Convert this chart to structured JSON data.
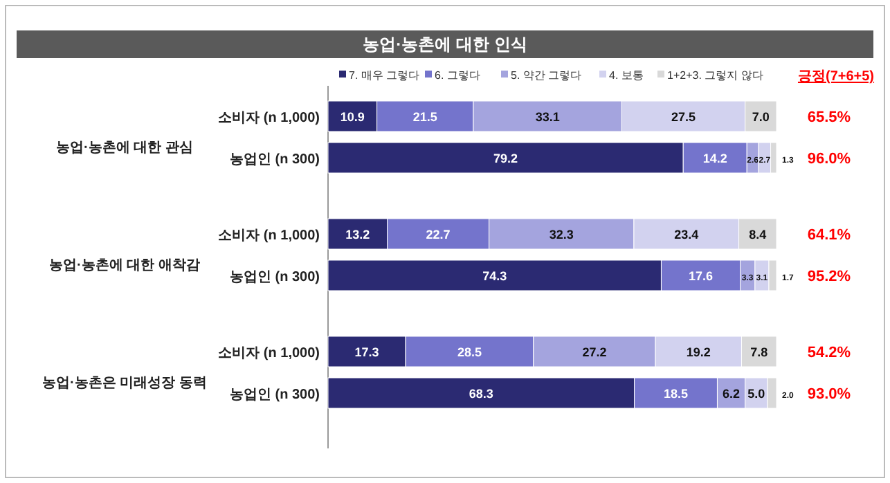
{
  "chart_data": {
    "type": "bar",
    "orientation": "horizontal",
    "stacked": true,
    "data_labels": true,
    "legend": "top",
    "title": "농업·농촌에 대한 인식",
    "categories": [
      "소비자 (n 1,000)",
      "농업인 (n 300)",
      "소비자 (n 1,000)",
      "농업인 (n 300)",
      "소비자 (n 1,000)",
      "농업인 (n 300)"
    ],
    "series": [
      {
        "name": "7. 매우 그렇다",
        "color": "#2b2a72",
        "values": [
          10.9,
          79.2,
          13.2,
          74.3,
          17.3,
          68.3
        ],
        "value_labels": [
          "10.9",
          "79.2",
          "13.2",
          "74.3",
          "17.3",
          "68.3"
        ]
      },
      {
        "name": "6. 그렇다",
        "color": "#7474cc",
        "values": [
          21.5,
          14.2,
          22.7,
          17.6,
          28.5,
          18.5
        ],
        "value_labels": [
          "21.5",
          "14.2",
          "22.7",
          "17.6",
          "28.5",
          "18.5"
        ]
      },
      {
        "name": "5. 약간 그렇다",
        "color": "#a4a4de",
        "values": [
          33.1,
          2.6,
          32.3,
          3.3,
          27.2,
          6.2
        ],
        "value_labels": [
          "33.1",
          "2.6",
          "32.3",
          "3.3",
          "27.2",
          "6.2"
        ]
      },
      {
        "name": "4. 보통",
        "color": "#d2d2ef",
        "values": [
          27.5,
          2.7,
          23.4,
          3.1,
          19.2,
          5.0
        ],
        "value_labels": [
          "27.5",
          "2.7",
          "23.4",
          "3.1",
          "19.2",
          "5.0"
        ]
      },
      {
        "name": "1+2+3. 그렇지 않다",
        "color": "#d9d9d9",
        "values": [
          7.0,
          1.3,
          8.4,
          1.7,
          7.8,
          2.0
        ],
        "value_labels": [
          "7.0",
          "1.3",
          "8.4",
          "1.7",
          "7.8",
          "2.0"
        ]
      }
    ],
    "annotations": [
      "긍정(7+6+5)",
      "65.5%",
      "96.0%",
      "64.1%",
      "95.2%",
      "54.2%",
      "93.0%",
      "농업·농촌에 대한 관심",
      "농업·농촌에 대한 애착감",
      "농업·농촌은 미래성장 동력"
    ]
  }
}
